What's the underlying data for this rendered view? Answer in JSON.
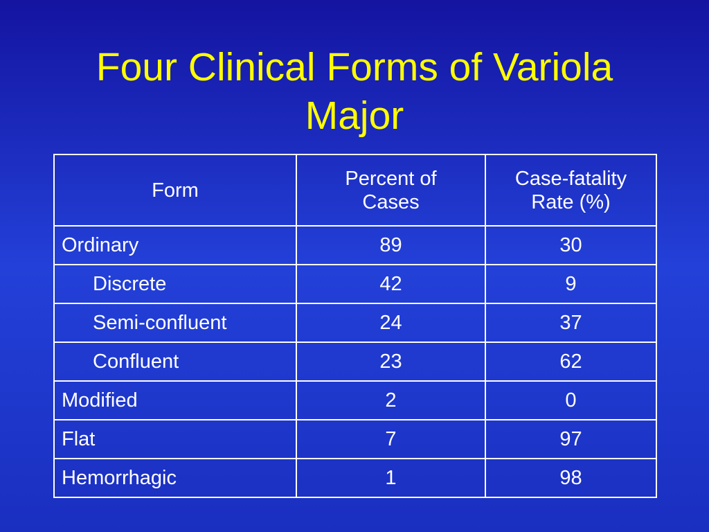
{
  "title": "Four Clinical Forms of Variola Major",
  "table": {
    "header": [
      "Form",
      "Percent of Cases",
      "Case-fatality Rate (%)"
    ],
    "rows": [
      [
        "Ordinary",
        89,
        30
      ],
      [
        "Discrete",
        42,
        9
      ],
      [
        "Semi-confluent",
        24,
        37
      ],
      [
        "Confluent",
        23,
        62
      ],
      [
        "Modified",
        2,
        0
      ],
      [
        "Flat",
        7,
        97
      ],
      [
        "Hemorrhagic",
        1,
        98
      ]
    ]
  }
}
